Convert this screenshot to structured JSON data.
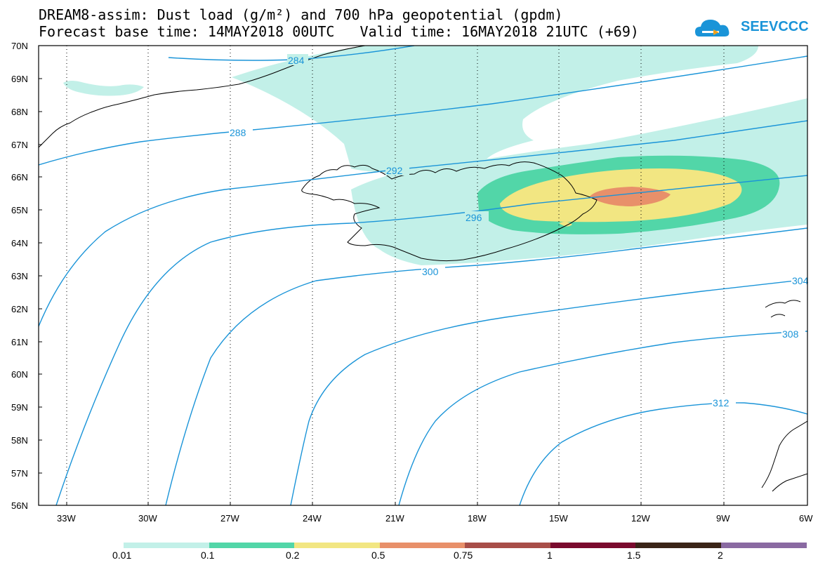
{
  "header": {
    "line1": "DREAM8-assim: Dust load (g/m²) and 700 hPa geopotential (gpdm)",
    "line2": "Forecast base time: 14MAY2018 00UTC   Valid time: 16MAY2018 21UTC (+69)"
  },
  "logo": {
    "text": "SEEVCCC"
  },
  "map": {
    "lat_labels": [
      "70N",
      "69N",
      "68N",
      "67N",
      "66N",
      "65N",
      "64N",
      "63N",
      "62N",
      "61N",
      "60N",
      "59N",
      "58N",
      "57N",
      "56N"
    ],
    "lon_labels": [
      "33W",
      "30W",
      "27W",
      "24W",
      "21W",
      "18W",
      "15W",
      "12W",
      "9W",
      "6W"
    ],
    "contour_labels": [
      "284",
      "288",
      "292",
      "296",
      "300",
      "304",
      "308",
      "312"
    ],
    "colors": {
      "contour": "#1a94d8",
      "level_0_01": "#c2f0e8",
      "level_0_1": "#52d6a8",
      "level_0_2": "#f2e682",
      "level_0_5": "#e8906a",
      "level_0_75": "#a84e48",
      "level_1": "#7a0a2e",
      "level_1_5": "#3a2418",
      "level_2": "#8a6aa2"
    }
  },
  "colorbar": {
    "labels": [
      "0.01",
      "0.1",
      "0.2",
      "0.5",
      "0.75",
      "1",
      "1.5",
      "2"
    ],
    "colors": [
      "#c2f0e8",
      "#52d6a8",
      "#f2e682",
      "#e8906a",
      "#a84e48",
      "#7a0a2e",
      "#3a2418",
      "#8a6aa2"
    ]
  }
}
